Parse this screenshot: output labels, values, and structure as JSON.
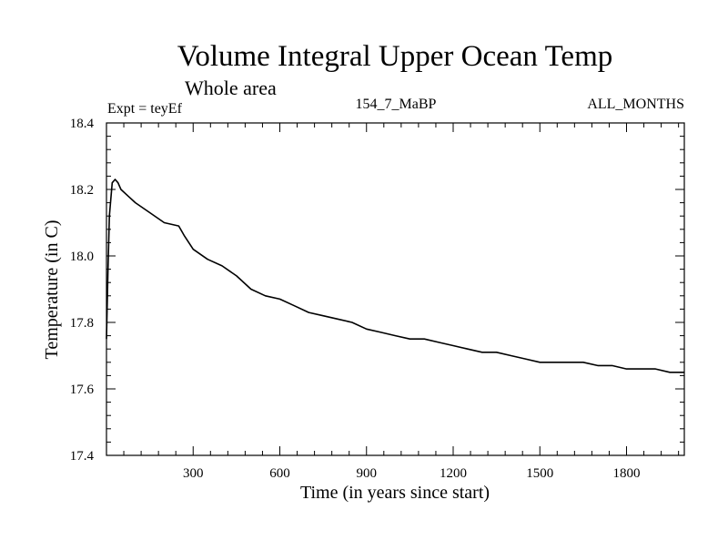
{
  "chart_data": {
    "type": "line",
    "title": "Volume Integral Upper Ocean Temp",
    "subtitle": "Whole area",
    "experiment_label": "Expt = teyEf",
    "run_label": "154_7_MaBP",
    "months_label": "ALL_MONTHS",
    "xlabel": "Time (in years since start)",
    "ylabel": "Temperature (in C)",
    "xlim": [
      0,
      2000
    ],
    "ylim": [
      17.4,
      18.4
    ],
    "x_ticks": [
      300,
      600,
      900,
      1200,
      1500,
      1800
    ],
    "x_tick_labels": [
      "300",
      "600",
      "900",
      "1200",
      "1500",
      "1800"
    ],
    "y_ticks": [
      17.4,
      17.6,
      17.8,
      18.0,
      18.2,
      18.4
    ],
    "y_tick_labels": [
      "17.4",
      "17.6",
      "17.8",
      "18.0",
      "18.2",
      "18.4"
    ],
    "grid": false,
    "series": [
      {
        "name": "Volume integral upper ocean temperature",
        "color": "#000000",
        "x": [
          0,
          5,
          10,
          20,
          30,
          40,
          50,
          75,
          100,
          150,
          200,
          250,
          270,
          300,
          350,
          400,
          450,
          500,
          550,
          600,
          650,
          700,
          750,
          800,
          850,
          900,
          950,
          1000,
          1050,
          1100,
          1150,
          1200,
          1250,
          1300,
          1350,
          1400,
          1450,
          1500,
          1550,
          1600,
          1650,
          1700,
          1750,
          1800,
          1850,
          1900,
          1950,
          2000
        ],
        "values": [
          17.75,
          17.95,
          18.12,
          18.22,
          18.23,
          18.22,
          18.2,
          18.18,
          18.16,
          18.13,
          18.1,
          18.09,
          18.06,
          18.02,
          17.99,
          17.97,
          17.94,
          17.9,
          17.88,
          17.87,
          17.85,
          17.83,
          17.82,
          17.81,
          17.8,
          17.78,
          17.77,
          17.76,
          17.75,
          17.75,
          17.74,
          17.73,
          17.72,
          17.71,
          17.71,
          17.7,
          17.69,
          17.68,
          17.68,
          17.68,
          17.68,
          17.67,
          17.67,
          17.66,
          17.66,
          17.66,
          17.65,
          17.65
        ]
      }
    ]
  }
}
